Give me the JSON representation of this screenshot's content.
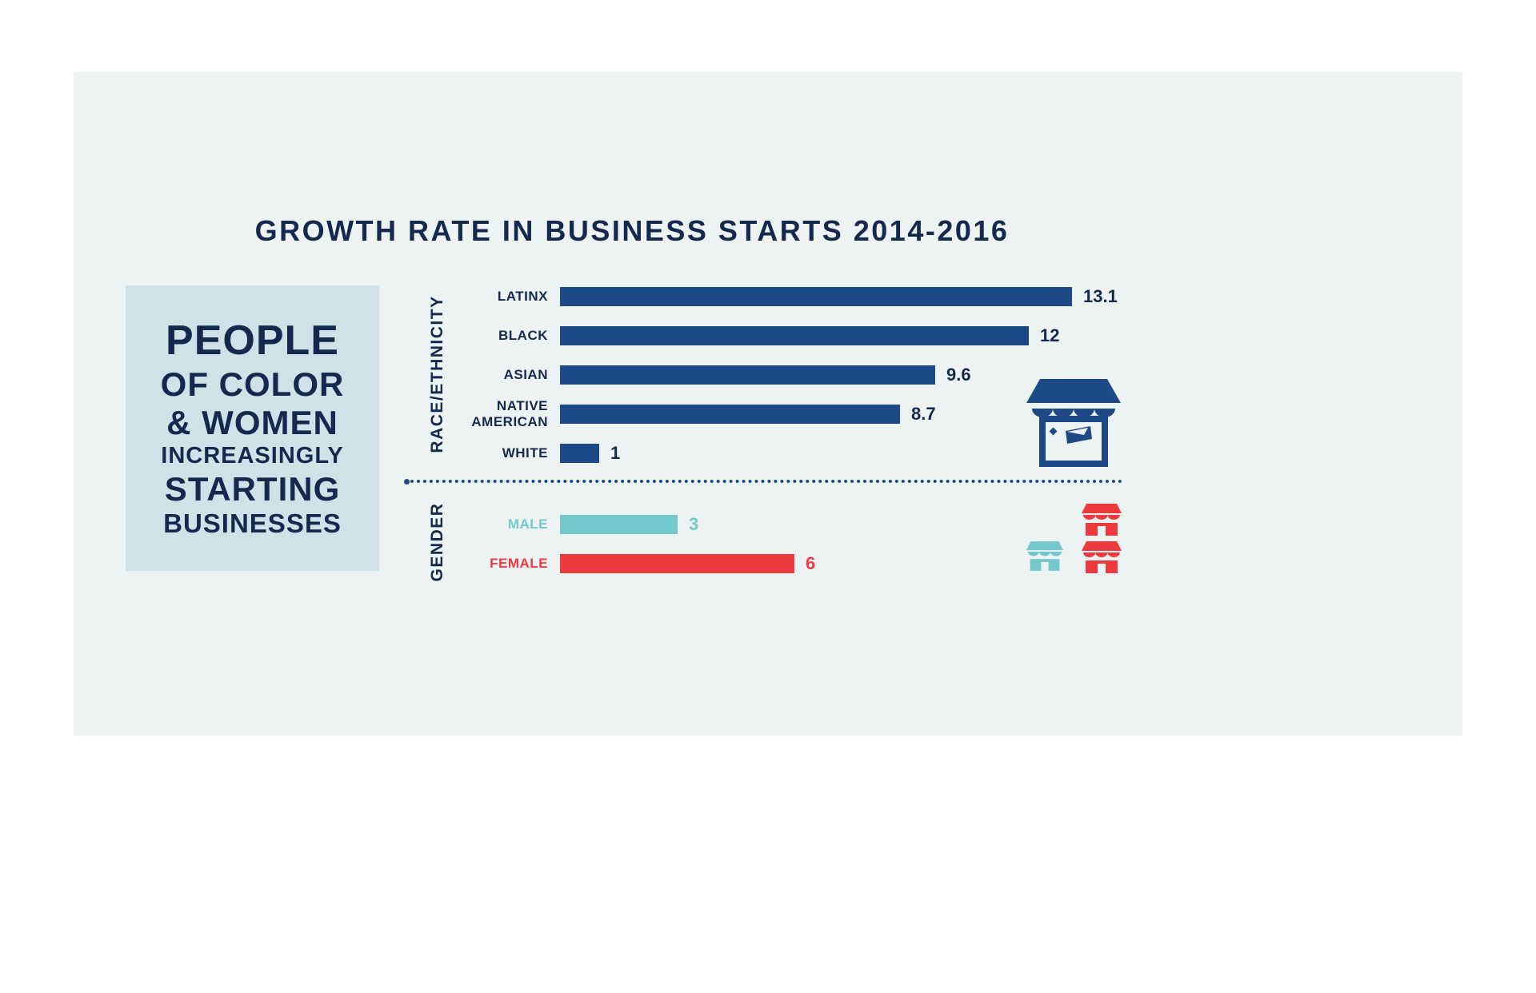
{
  "title": "GROWTH RATE IN BUSINESS STARTS 2014-2016",
  "left_panel": {
    "lines": [
      "PEOPLE",
      "OF COLOR",
      "& WOMEN",
      "INCREASINGLY",
      "STARTING",
      "BUSINESSES"
    ]
  },
  "chart_data": {
    "type": "bar",
    "orientation": "horizontal",
    "title": "GROWTH RATE IN BUSINESS STARTS 2014-2016",
    "x_max": 13.1,
    "grid": false,
    "legend": false,
    "groups": [
      {
        "axis_label": "RACE/ETHNICITY",
        "bar_color": "#1d4a86",
        "label_color": "#15294e",
        "value_color": "#15294e",
        "bars": [
          {
            "label": "LATINX",
            "value": 13.1,
            "display": "13.1"
          },
          {
            "label": "BLACK",
            "value": 12,
            "display": "12"
          },
          {
            "label": "ASIAN",
            "value": 9.6,
            "display": "9.6"
          },
          {
            "label": "NATIVE AMERICAN",
            "value": 8.7,
            "display": "8.7"
          },
          {
            "label": "WHITE",
            "value": 1,
            "display": "1"
          }
        ]
      },
      {
        "axis_label": "GENDER",
        "bar_color": "#1d4a86",
        "label_color": "#15294e",
        "value_color": "#15294e",
        "bars": [
          {
            "label": "MALE",
            "value": 3,
            "display": "3",
            "color": "#74c7ca"
          },
          {
            "label": "FEMALE",
            "value": 6,
            "display": "6",
            "color": "#ee3a3e"
          }
        ]
      }
    ]
  },
  "icons": [
    {
      "name": "storefront-icon-navy",
      "color": "#1d4a86"
    },
    {
      "name": "storefront-icon-red-top",
      "color": "#ee3a3e"
    },
    {
      "name": "storefront-icon-teal",
      "color": "#74c7ca"
    },
    {
      "name": "storefront-icon-red-bottom",
      "color": "#ee3a3e"
    }
  ],
  "colors": {
    "background": "#ffffff",
    "panel": "#ecf3f2",
    "callout_box": "#cfe2e8",
    "navy": "#1d4a86",
    "text_navy": "#15294e",
    "teal": "#74c7ca",
    "red": "#ee3a3e"
  }
}
